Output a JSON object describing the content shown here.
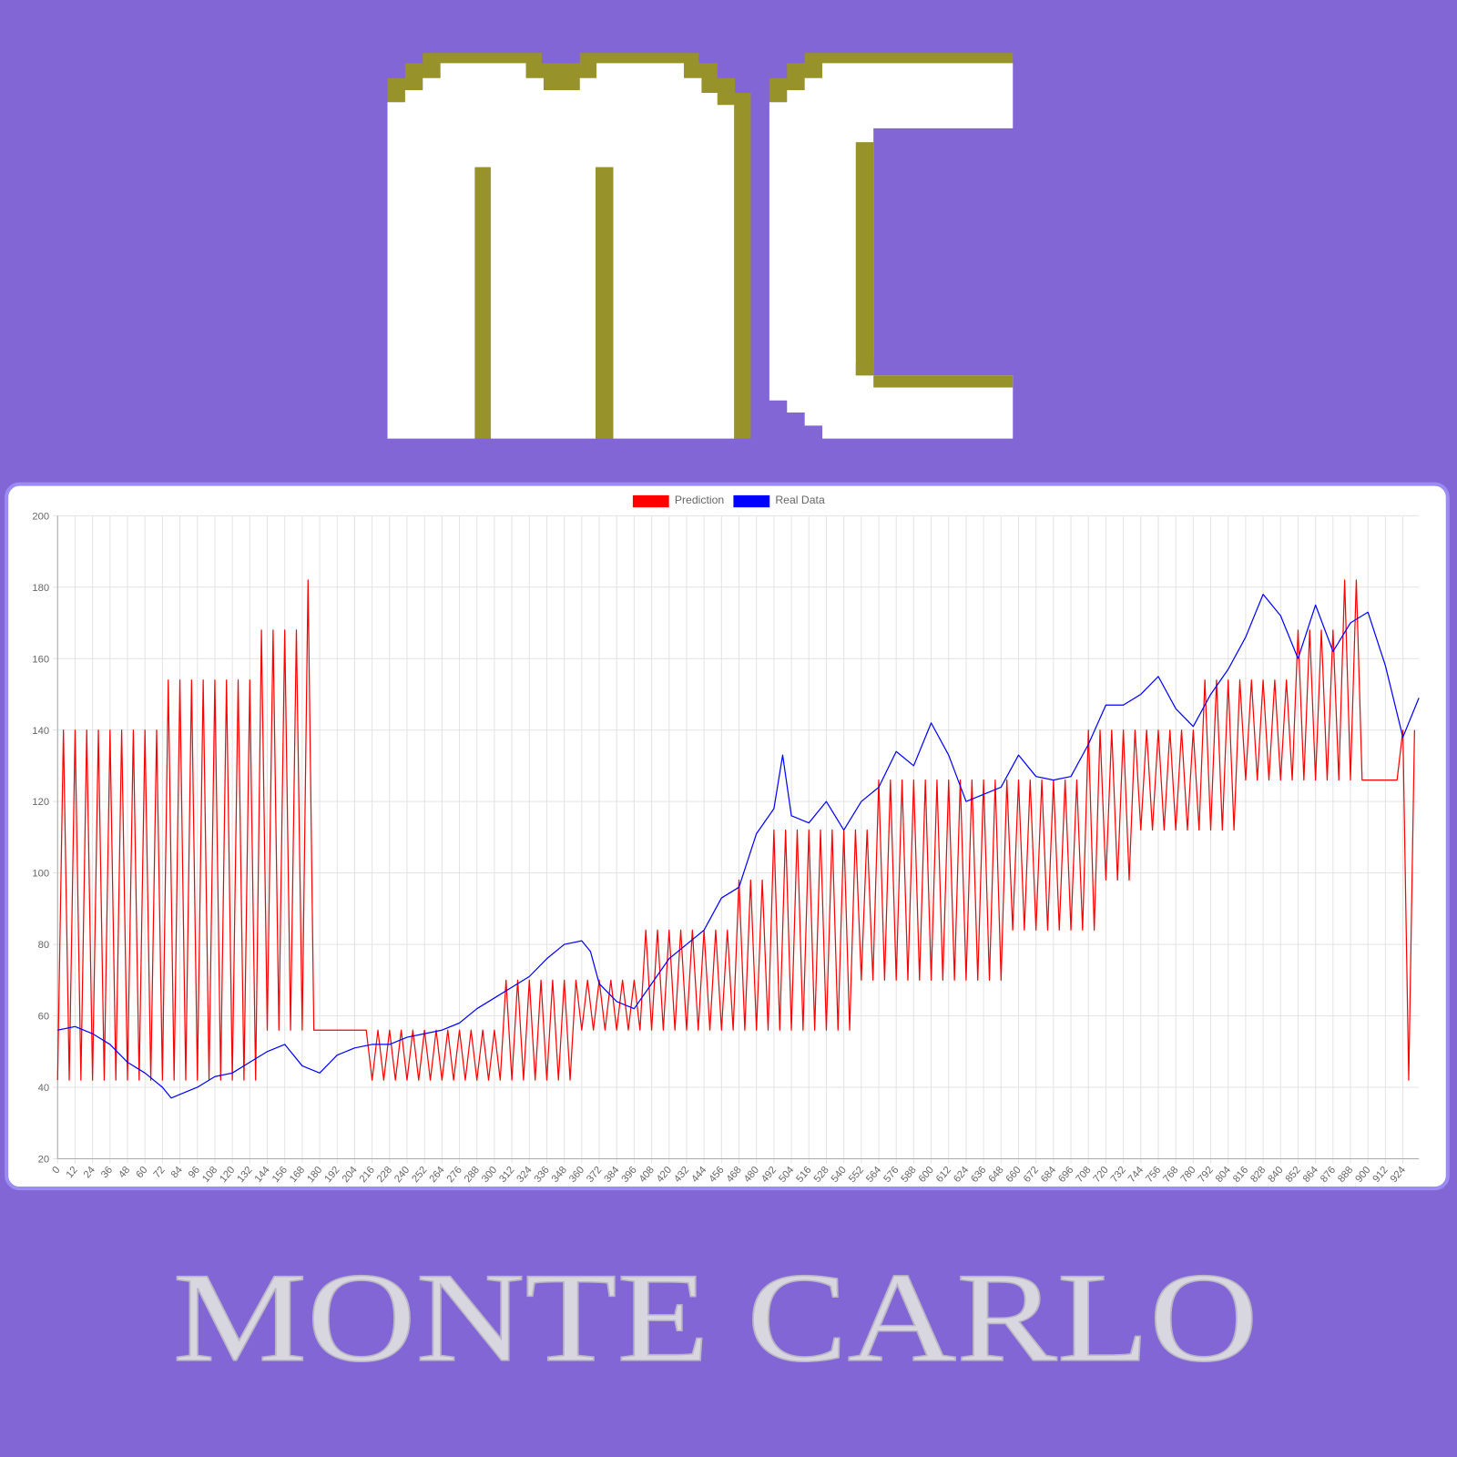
{
  "title": "MONTE CARLO",
  "chart_data": {
    "type": "line",
    "xlim": [
      0,
      935
    ],
    "ylim": [
      20,
      200
    ],
    "xticks": [
      0,
      12,
      24,
      36,
      48,
      60,
      72,
      84,
      96,
      108,
      120,
      132,
      144,
      156,
      168,
      180,
      192,
      204,
      216,
      228,
      240,
      252,
      264,
      276,
      288,
      300,
      312,
      324,
      336,
      348,
      360,
      372,
      384,
      396,
      408,
      420,
      432,
      444,
      456,
      468,
      480,
      492,
      504,
      516,
      528,
      540,
      552,
      564,
      576,
      588,
      600,
      612,
      624,
      636,
      648,
      660,
      672,
      684,
      696,
      708,
      720,
      732,
      744,
      756,
      768,
      780,
      792,
      804,
      816,
      828,
      840,
      852,
      864,
      876,
      888,
      900,
      912,
      924
    ],
    "yticks": [
      20,
      40,
      60,
      80,
      100,
      120,
      140,
      160,
      180,
      200
    ],
    "grid": true,
    "legend": "top",
    "series": [
      {
        "name": "Prediction",
        "color": "#ff0000",
        "x": [
          0,
          4,
          8,
          12,
          16,
          20,
          24,
          28,
          32,
          36,
          40,
          44,
          48,
          52,
          56,
          60,
          64,
          68,
          72,
          76,
          80,
          84,
          88,
          92,
          96,
          100,
          104,
          108,
          112,
          116,
          120,
          124,
          128,
          132,
          136,
          140,
          144,
          148,
          152,
          156,
          160,
          164,
          168,
          172,
          176,
          180,
          184,
          188,
          192,
          196,
          200,
          204,
          208,
          212,
          216,
          220,
          224,
          228,
          232,
          236,
          240,
          244,
          248,
          252,
          256,
          260,
          264,
          268,
          272,
          276,
          280,
          284,
          288,
          292,
          296,
          300,
          304,
          308,
          312,
          316,
          320,
          324,
          328,
          332,
          336,
          340,
          344,
          348,
          352,
          356,
          360,
          364,
          368,
          372,
          376,
          380,
          384,
          388,
          392,
          396,
          400,
          404,
          408,
          412,
          416,
          420,
          424,
          428,
          432,
          436,
          440,
          444,
          448,
          452,
          456,
          460,
          464,
          468,
          472,
          476,
          480,
          484,
          488,
          492,
          496,
          500,
          504,
          508,
          512,
          516,
          520,
          524,
          528,
          532,
          536,
          540,
          544,
          548,
          552,
          556,
          560,
          564,
          568,
          572,
          576,
          580,
          584,
          588,
          592,
          596,
          600,
          604,
          608,
          612,
          616,
          620,
          624,
          628,
          632,
          636,
          640,
          644,
          648,
          652,
          656,
          660,
          664,
          668,
          672,
          676,
          680,
          684,
          688,
          692,
          696,
          700,
          704,
          708,
          712,
          716,
          720,
          724,
          728,
          732,
          736,
          740,
          744,
          748,
          752,
          756,
          760,
          764,
          768,
          772,
          776,
          780,
          784,
          788,
          792,
          796,
          800,
          804,
          808,
          812,
          816,
          820,
          824,
          828,
          832,
          836,
          840,
          844,
          848,
          852,
          856,
          860,
          864,
          868,
          872,
          876,
          880,
          884,
          888,
          892,
          896,
          900,
          904,
          908,
          912,
          916,
          920,
          924,
          928,
          932
        ],
        "values": [
          42,
          140,
          42,
          140,
          42,
          140,
          42,
          140,
          42,
          140,
          42,
          140,
          42,
          140,
          42,
          140,
          42,
          140,
          42,
          154,
          42,
          154,
          42,
          154,
          42,
          154,
          42,
          154,
          42,
          154,
          42,
          154,
          42,
          154,
          42,
          168,
          56,
          168,
          56,
          168,
          56,
          168,
          56,
          182,
          56,
          56,
          56,
          56,
          56,
          56,
          56,
          56,
          56,
          56,
          42,
          56,
          42,
          56,
          42,
          56,
          42,
          56,
          42,
          56,
          42,
          56,
          42,
          56,
          42,
          56,
          42,
          56,
          42,
          56,
          42,
          56,
          42,
          70,
          42,
          70,
          42,
          70,
          42,
          70,
          42,
          70,
          42,
          70,
          42,
          70,
          56,
          70,
          56,
          70,
          56,
          70,
          56,
          70,
          56,
          70,
          56,
          84,
          56,
          84,
          56,
          84,
          56,
          84,
          56,
          84,
          56,
          84,
          56,
          84,
          56,
          84,
          56,
          98,
          56,
          98,
          56,
          98,
          56,
          112,
          56,
          112,
          56,
          112,
          56,
          112,
          56,
          112,
          56,
          112,
          56,
          112,
          56,
          112,
          70,
          112,
          70,
          126,
          70,
          126,
          70,
          126,
          70,
          126,
          70,
          126,
          70,
          126,
          70,
          126,
          70,
          126,
          70,
          126,
          70,
          126,
          70,
          126,
          70,
          126,
          84,
          126,
          84,
          126,
          84,
          126,
          84,
          126,
          84,
          126,
          84,
          126,
          84,
          140,
          84,
          140,
          98,
          140,
          98,
          140,
          98,
          140,
          112,
          140,
          112,
          140,
          112,
          140,
          112,
          140,
          112,
          140,
          112,
          154,
          112,
          154,
          112,
          154,
          112,
          154,
          126,
          154,
          126,
          154,
          126,
          154,
          126,
          154,
          126,
          168,
          126,
          168,
          126,
          168,
          126,
          168,
          126,
          182,
          126,
          182,
          126,
          126,
          126,
          126,
          126,
          126,
          126,
          140,
          42,
          140
        ]
      },
      {
        "name": "Real Data",
        "color": "#0000ff",
        "x": [
          0,
          12,
          24,
          36,
          48,
          60,
          72,
          78,
          84,
          96,
          108,
          120,
          132,
          144,
          156,
          168,
          180,
          192,
          204,
          216,
          228,
          240,
          252,
          264,
          276,
          288,
          300,
          312,
          324,
          336,
          348,
          360,
          366,
          372,
          384,
          396,
          408,
          420,
          432,
          444,
          456,
          468,
          480,
          492,
          498,
          504,
          516,
          528,
          540,
          552,
          564,
          576,
          588,
          600,
          612,
          624,
          636,
          648,
          660,
          672,
          684,
          696,
          708,
          720,
          732,
          744,
          756,
          768,
          780,
          792,
          804,
          816,
          828,
          840,
          852,
          864,
          876,
          888,
          900,
          912,
          924,
          935
        ],
        "values": [
          56,
          57,
          55,
          52,
          47,
          44,
          40,
          37,
          38,
          40,
          43,
          44,
          47,
          50,
          52,
          46,
          44,
          49,
          51,
          52,
          52,
          54,
          55,
          56,
          58,
          62,
          65,
          68,
          71,
          76,
          80,
          81,
          78,
          69,
          64,
          62,
          69,
          76,
          80,
          84,
          93,
          96,
          111,
          118,
          133,
          116,
          114,
          120,
          112,
          120,
          124,
          134,
          130,
          142,
          133,
          120,
          122,
          124,
          133,
          127,
          126,
          127,
          136,
          147,
          147,
          150,
          155,
          146,
          141,
          150,
          157,
          166,
          178,
          172,
          160,
          175,
          162,
          170,
          173,
          158,
          138,
          149
        ]
      }
    ]
  }
}
